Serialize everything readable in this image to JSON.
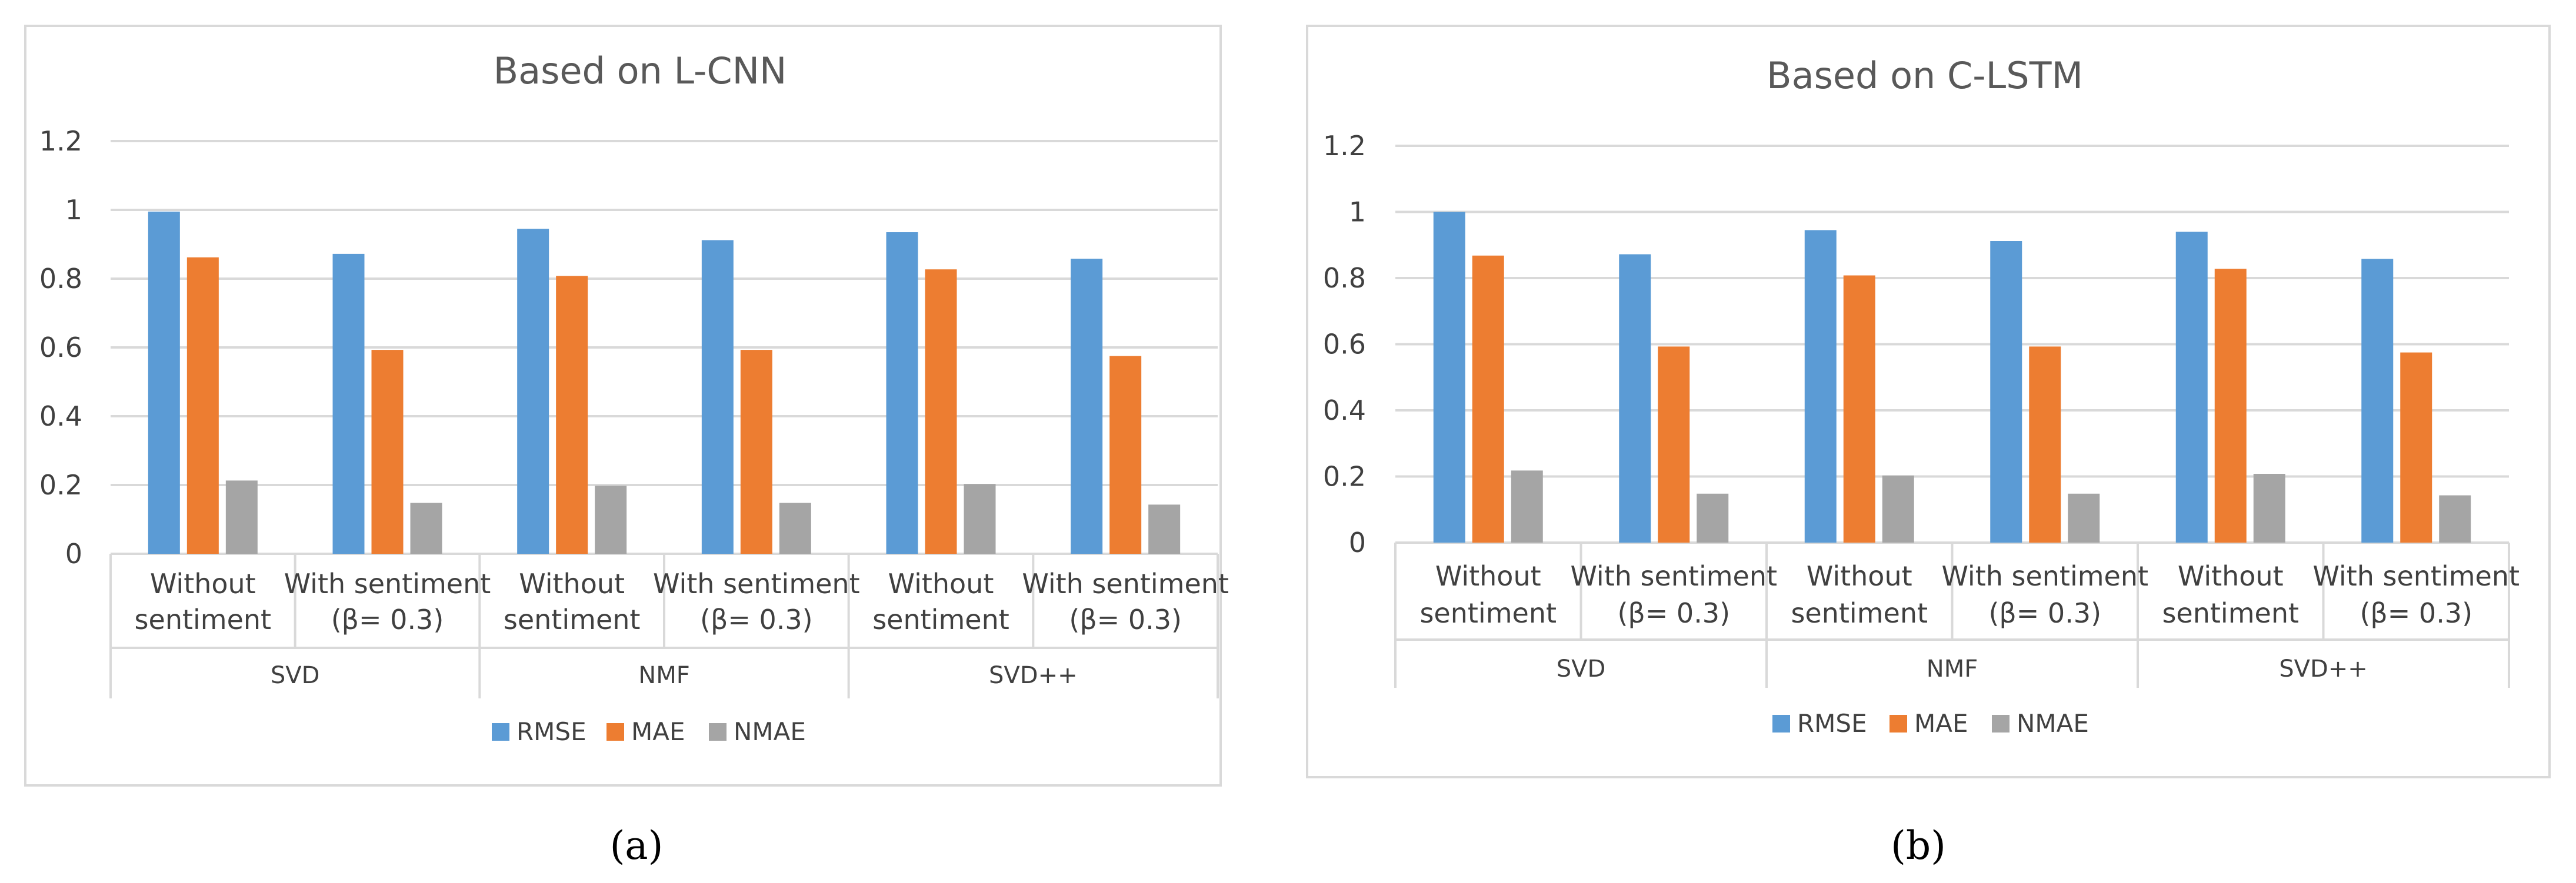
{
  "chart_data": [
    {
      "type": "bar",
      "title": "Based on L-CNN",
      "caption": "(a)",
      "groups": [
        {
          "label": "SVD",
          "categories": [
            [
              "Without",
              "sentiment"
            ],
            [
              "With sentiment",
              "(β= 0.3)"
            ]
          ]
        },
        {
          "label": "NMF",
          "categories": [
            [
              "Without",
              "sentiment"
            ],
            [
              "With sentiment",
              "(β= 0.3)"
            ]
          ]
        },
        {
          "label": "SVD++",
          "categories": [
            [
              "Without",
              "sentiment"
            ],
            [
              "With sentiment",
              "(β= 0.3)"
            ]
          ]
        }
      ],
      "series": [
        {
          "name": "RMSE",
          "color": "#5B9BD5",
          "values": [
            0.995,
            0.872,
            0.945,
            0.912,
            0.935,
            0.858
          ]
        },
        {
          "name": "MAE",
          "color": "#ED7D31",
          "values": [
            0.862,
            0.593,
            0.808,
            0.593,
            0.827,
            0.575
          ]
        },
        {
          "name": "NMAE",
          "color": "#A5A5A5",
          "values": [
            0.213,
            0.148,
            0.198,
            0.148,
            0.203,
            0.143
          ]
        }
      ],
      "ylim": [
        0,
        1.2
      ],
      "yticks": [
        "0",
        "0.2",
        "0.4",
        "0.6",
        "0.8",
        "1",
        "1.2"
      ],
      "legend": "bottom"
    },
    {
      "type": "bar",
      "title": "Based on C-LSTM",
      "caption": "(b)",
      "groups": [
        {
          "label": "SVD",
          "categories": [
            [
              "Without",
              "sentiment"
            ],
            [
              "With sentiment",
              "(β= 0.3)"
            ]
          ]
        },
        {
          "label": "NMF",
          "categories": [
            [
              "Without",
              "sentiment"
            ],
            [
              "With sentiment",
              "(β= 0.3)"
            ]
          ]
        },
        {
          "label": "SVD++",
          "categories": [
            [
              "Without",
              "sentiment"
            ],
            [
              "With sentiment",
              "(β= 0.3)"
            ]
          ]
        }
      ],
      "series": [
        {
          "name": "RMSE",
          "color": "#5B9BD5",
          "values": [
            1.0,
            0.872,
            0.945,
            0.912,
            0.94,
            0.858
          ]
        },
        {
          "name": "MAE",
          "color": "#ED7D31",
          "values": [
            0.868,
            0.593,
            0.808,
            0.593,
            0.828,
            0.575
          ]
        },
        {
          "name": "NMAE",
          "color": "#A5A5A5",
          "values": [
            0.218,
            0.148,
            0.203,
            0.148,
            0.208,
            0.143
          ]
        }
      ],
      "ylim": [
        0,
        1.2
      ],
      "yticks": [
        "0",
        "0.2",
        "0.4",
        "0.6",
        "0.8",
        "1",
        "1.2"
      ],
      "legend": "bottom"
    }
  ]
}
